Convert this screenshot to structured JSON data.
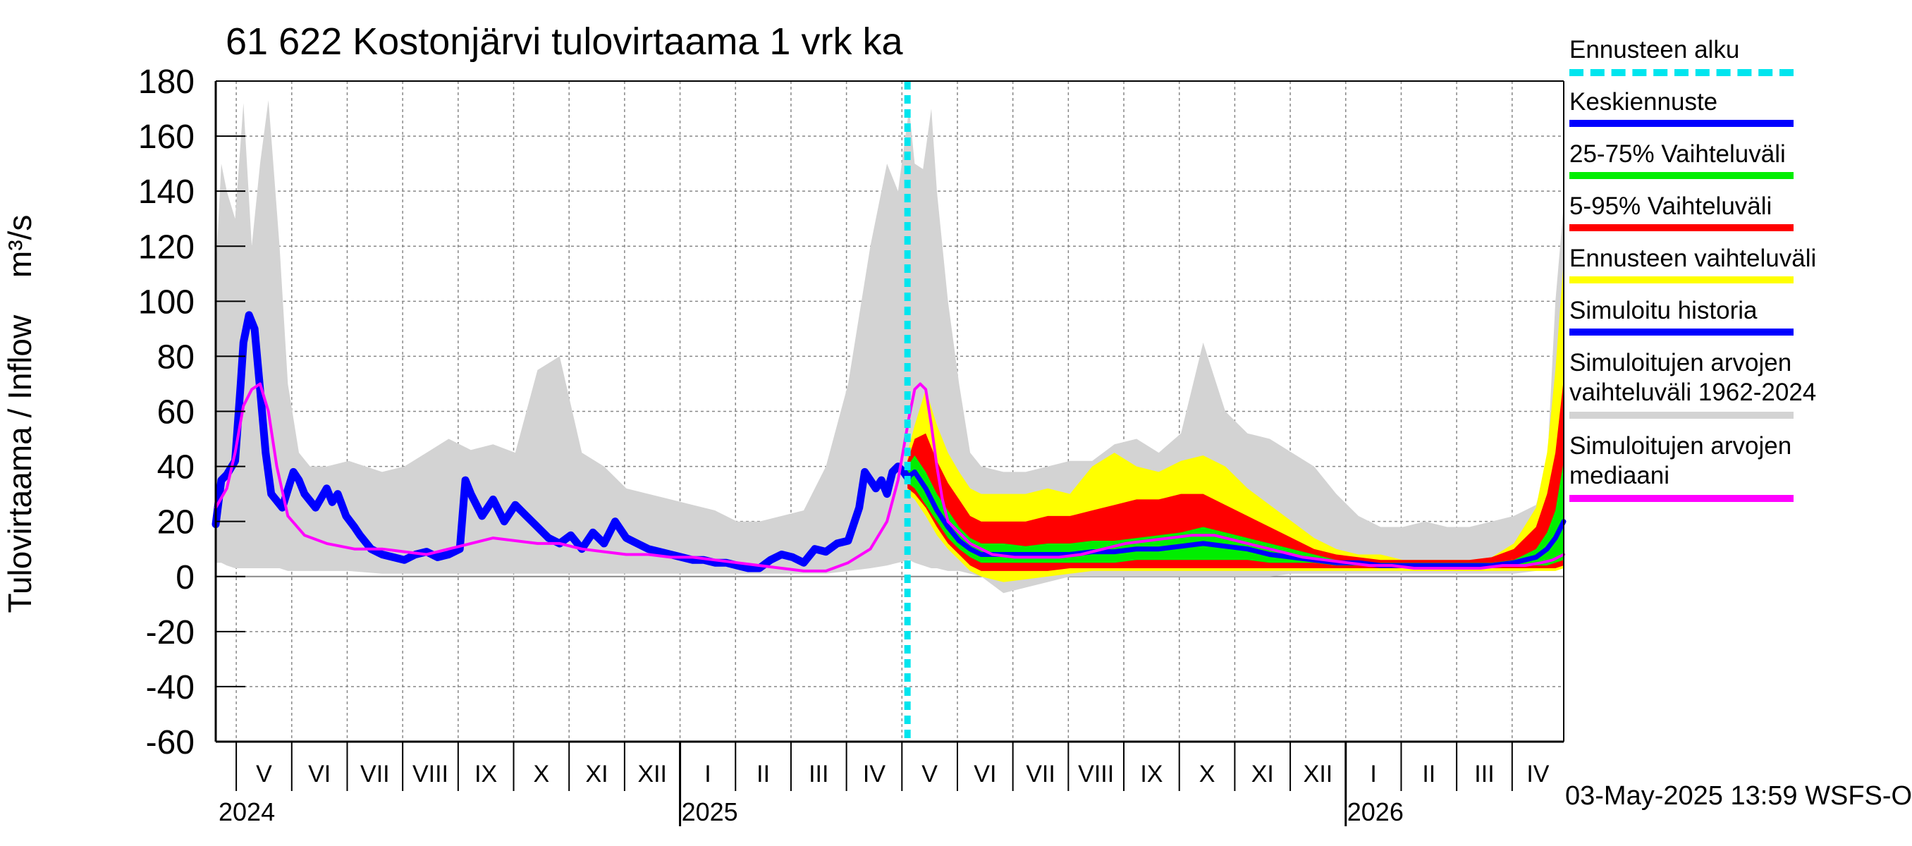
{
  "title": "61 622 Kostonjärvi tulovirtaama 1 vrk ka",
  "y_axis_label": "Tulovirtaama / Inflow",
  "y_axis_unit": "m³/s",
  "footer": "03-May-2025 13:59 WSFS-O",
  "legend": {
    "forecast_start": "Ennusteen alku",
    "mean_forecast": "Keskiennuste",
    "range_25_75": "25-75% Vaihteluväli",
    "range_5_95": "5-95% Vaihteluväli",
    "forecast_range": "Ennusteen vaihteluväli",
    "simulated_history": "Simuloitu historia",
    "sim_range_line1": "Simuloitujen arvojen",
    "sim_range_line2": "vaihteluväli 1962-2024",
    "sim_median_line1": "Simuloitujen arvojen",
    "sim_median_line2": "mediaani"
  },
  "colors": {
    "forecast_start": "#00e5ee",
    "mean_forecast": "#0000ff",
    "range_25_75": "#00ee00",
    "range_5_95": "#ff0000",
    "forecast_range": "#ffff00",
    "simulated_history": "#0000ff",
    "sim_range": "#d3d3d3",
    "sim_median": "#ff00ff"
  },
  "chart_data": {
    "type": "area",
    "title": "61 622 Kostonjärvi tulovirtaama 1 vrk ka",
    "ylabel": "Tulovirtaama / Inflow m³/s",
    "ylim": [
      -60,
      180
    ],
    "yticks": [
      180,
      160,
      140,
      120,
      100,
      80,
      60,
      40,
      20,
      0,
      -20,
      -40,
      -60
    ],
    "x_unit": "months since 2024-04-20",
    "xlim": [
      0,
      24.3
    ],
    "month_labels": [
      "V",
      "VI",
      "VII",
      "VIII",
      "IX",
      "X",
      "XI",
      "XII",
      "I",
      "II",
      "III",
      "IV",
      "V",
      "VI",
      "VII",
      "VIII",
      "IX",
      "X",
      "XI",
      "XII",
      "I",
      "II",
      "III",
      "IV"
    ],
    "month_starts": [
      0.37,
      1.37,
      2.37,
      3.37,
      4.37,
      5.37,
      6.37,
      7.37,
      8.37,
      9.37,
      10.37,
      11.37,
      12.37,
      13.37,
      14.37,
      15.37,
      16.37,
      17.37,
      18.37,
      19.37,
      20.37,
      21.37,
      22.37,
      23.37
    ],
    "year_labels": [
      "2024",
      "2025",
      "2026"
    ],
    "year_starts": [
      0.0,
      8.37,
      20.37
    ],
    "forecast_start_x": 12.47,
    "series": [
      {
        "name": "Simuloitujen arvojen vaihteluväli 1962-2024",
        "x": [
          0,
          0.1,
          0.2,
          0.35,
          0.5,
          0.65,
          0.8,
          0.95,
          1.0,
          1.15,
          1.3,
          1.5,
          1.7,
          2.0,
          2.4,
          3.0,
          3.4,
          3.8,
          4.2,
          4.6,
          5.0,
          5.4,
          5.8,
          6.2,
          6.6,
          7.0,
          7.4,
          7.8,
          8.2,
          8.6,
          9.0,
          9.4,
          9.8,
          10.2,
          10.6,
          11.0,
          11.4,
          11.8,
          12.1,
          12.3,
          12.5,
          12.6,
          12.75,
          12.9,
          13.0,
          13.2,
          13.4,
          13.6,
          13.8,
          14.2,
          14.6,
          15.0,
          15.4,
          15.8,
          16.2,
          16.6,
          17.0,
          17.4,
          17.8,
          18.2,
          18.6,
          19.0,
          19.4,
          19.8,
          20.2,
          20.6,
          21.0,
          21.4,
          21.8,
          22.2,
          22.6,
          23.0,
          23.4,
          23.8,
          24.0,
          24.15,
          24.3
        ],
        "upper": [
          110,
          150,
          140,
          130,
          172,
          120,
          150,
          173,
          160,
          120,
          70,
          45,
          40,
          40,
          42,
          38,
          40,
          45,
          50,
          46,
          48,
          45,
          75,
          80,
          45,
          40,
          32,
          30,
          28,
          26,
          24,
          20,
          20,
          22,
          24,
          40,
          70,
          120,
          150,
          140,
          170,
          150,
          148,
          170,
          140,
          100,
          70,
          45,
          40,
          38,
          38,
          40,
          42,
          42,
          48,
          50,
          45,
          52,
          85,
          60,
          52,
          50,
          45,
          40,
          30,
          22,
          18,
          18,
          20,
          18,
          18,
          20,
          22,
          26,
          40,
          100,
          135
        ],
        "lower": [
          5,
          5,
          4,
          3,
          3,
          3,
          3,
          3,
          3,
          3,
          2,
          2,
          2,
          2,
          2,
          1,
          1,
          1,
          1,
          1,
          1,
          1,
          1,
          1,
          1,
          1,
          1,
          1,
          1,
          1,
          1,
          1,
          1,
          1,
          1,
          1,
          2,
          3,
          4,
          5,
          6,
          5,
          4,
          3,
          3,
          2,
          2,
          1,
          0,
          -6,
          -4,
          -2,
          0,
          0,
          0,
          0,
          0,
          0,
          0,
          0,
          0,
          0,
          1,
          1,
          1,
          1,
          1,
          1,
          1,
          1,
          1,
          1,
          1,
          2,
          3,
          5,
          8
        ]
      },
      {
        "name": "Ennusteen vaihteluväli",
        "x": [
          12.47,
          12.6,
          12.8,
          13.0,
          13.2,
          13.4,
          13.6,
          13.8,
          14.2,
          14.6,
          15.0,
          15.4,
          15.8,
          16.2,
          16.6,
          17.0,
          17.4,
          17.8,
          18.2,
          18.6,
          19.0,
          19.4,
          19.8,
          20.2,
          20.6,
          21.0,
          21.4,
          21.8,
          22.2,
          22.6,
          23.0,
          23.4,
          23.8,
          24.0,
          24.15,
          24.3
        ],
        "upper": [
          45,
          55,
          68,
          55,
          45,
          38,
          32,
          30,
          30,
          30,
          32,
          30,
          40,
          45,
          40,
          38,
          42,
          44,
          40,
          32,
          26,
          20,
          14,
          10,
          8,
          8,
          6,
          6,
          6,
          6,
          7,
          12,
          25,
          45,
          75,
          115
        ],
        "lower": [
          30,
          28,
          22,
          15,
          10,
          6,
          2,
          0,
          -2,
          -1,
          0,
          1,
          2,
          2,
          2,
          2,
          2,
          2,
          2,
          2,
          2,
          2,
          2,
          2,
          2,
          2,
          2,
          2,
          2,
          2,
          2,
          2,
          2,
          2,
          2,
          3
        ]
      },
      {
        "name": "5-95% Vaihteluväli",
        "x": [
          12.47,
          12.6,
          12.8,
          13.0,
          13.2,
          13.4,
          13.6,
          13.8,
          14.2,
          14.6,
          15.0,
          15.4,
          15.8,
          16.2,
          16.6,
          17.0,
          17.4,
          17.8,
          18.2,
          18.6,
          19.0,
          19.4,
          19.8,
          20.2,
          20.6,
          21.0,
          21.4,
          21.8,
          22.2,
          22.6,
          23.0,
          23.4,
          23.8,
          24.0,
          24.15,
          24.3
        ],
        "upper": [
          42,
          50,
          52,
          42,
          34,
          28,
          22,
          20,
          20,
          20,
          22,
          22,
          24,
          26,
          28,
          28,
          30,
          30,
          26,
          22,
          18,
          14,
          10,
          8,
          7,
          6,
          6,
          6,
          6,
          6,
          7,
          10,
          18,
          30,
          45,
          72
        ],
        "lower": [
          32,
          30,
          25,
          18,
          12,
          8,
          4,
          2,
          2,
          2,
          2,
          3,
          3,
          3,
          3,
          3,
          3,
          3,
          3,
          3,
          3,
          3,
          3,
          3,
          3,
          3,
          3,
          3,
          3,
          3,
          3,
          3,
          3,
          3,
          3,
          4
        ]
      },
      {
        "name": "25-75% Vaihteluväli",
        "x": [
          12.47,
          12.6,
          12.8,
          13.0,
          13.2,
          13.4,
          13.6,
          13.8,
          14.2,
          14.6,
          15.0,
          15.4,
          15.8,
          16.2,
          16.6,
          17.0,
          17.4,
          17.8,
          18.2,
          18.6,
          19.0,
          19.4,
          19.8,
          20.2,
          20.6,
          21.0,
          21.4,
          21.8,
          22.2,
          22.6,
          23.0,
          23.4,
          23.8,
          24.0,
          24.15,
          24.3
        ],
        "upper": [
          40,
          44,
          38,
          30,
          24,
          18,
          14,
          12,
          12,
          11,
          12,
          12,
          13,
          13,
          14,
          15,
          16,
          18,
          16,
          14,
          12,
          10,
          8,
          6,
          5,
          5,
          5,
          5,
          5,
          5,
          5,
          6,
          10,
          16,
          24,
          42
        ],
        "lower": [
          34,
          32,
          26,
          20,
          14,
          10,
          7,
          5,
          5,
          5,
          5,
          5,
          5,
          5,
          6,
          6,
          6,
          6,
          6,
          6,
          5,
          5,
          5,
          4,
          4,
          4,
          4,
          4,
          4,
          4,
          4,
          4,
          4,
          4,
          5,
          6
        ]
      },
      {
        "name": "Keskiennuste",
        "x": [
          12.47,
          12.6,
          12.8,
          13.0,
          13.2,
          13.4,
          13.6,
          13.8,
          14.2,
          14.6,
          15.0,
          15.4,
          15.8,
          16.2,
          16.6,
          17.0,
          17.4,
          17.8,
          18.2,
          18.6,
          19.0,
          19.4,
          19.8,
          20.2,
          20.6,
          21.0,
          21.4,
          21.8,
          22.2,
          22.6,
          23.0,
          23.4,
          23.8,
          24.0,
          24.15,
          24.3
        ],
        "y": [
          36,
          38,
          32,
          24,
          18,
          13,
          10,
          8,
          8,
          8,
          8,
          8,
          9,
          9,
          10,
          10,
          11,
          12,
          11,
          10,
          8,
          7,
          6,
          5,
          5,
          4,
          4,
          4,
          4,
          4,
          4,
          5,
          7,
          10,
          14,
          20
        ]
      },
      {
        "name": "Simuloitu historia",
        "x": [
          0,
          0.1,
          0.2,
          0.35,
          0.45,
          0.5,
          0.6,
          0.7,
          0.8,
          0.9,
          1.0,
          1.2,
          1.4,
          1.5,
          1.6,
          1.8,
          2.0,
          2.1,
          2.2,
          2.35,
          2.5,
          2.6,
          2.8,
          3.0,
          3.2,
          3.4,
          3.6,
          3.8,
          4.0,
          4.2,
          4.4,
          4.5,
          4.6,
          4.8,
          5.0,
          5.2,
          5.4,
          5.6,
          5.8,
          6.0,
          6.2,
          6.4,
          6.6,
          6.8,
          7.0,
          7.2,
          7.4,
          7.6,
          7.8,
          8.0,
          8.2,
          8.4,
          8.6,
          8.8,
          9.0,
          9.2,
          9.4,
          9.6,
          9.8,
          10.0,
          10.2,
          10.4,
          10.6,
          10.8,
          11.0,
          11.2,
          11.4,
          11.6,
          11.7,
          11.8,
          11.9,
          12.0,
          12.1,
          12.2,
          12.3,
          12.4,
          12.47
        ],
        "y": [
          19,
          35,
          37,
          42,
          70,
          85,
          95,
          90,
          68,
          45,
          30,
          25,
          38,
          35,
          30,
          25,
          32,
          27,
          30,
          22,
          18,
          15,
          10,
          8,
          7,
          6,
          8,
          9,
          7,
          8,
          10,
          35,
          30,
          22,
          28,
          20,
          26,
          22,
          18,
          14,
          12,
          15,
          10,
          16,
          12,
          20,
          14,
          12,
          10,
          9,
          8,
          7,
          6,
          6,
          5,
          5,
          4,
          3,
          3,
          6,
          8,
          7,
          5,
          10,
          9,
          12,
          13,
          25,
          38,
          35,
          32,
          35,
          30,
          38,
          40,
          38,
          36
        ]
      },
      {
        "name": "Simuloitujen arvojen mediaani",
        "x": [
          0,
          0.2,
          0.35,
          0.5,
          0.65,
          0.8,
          0.95,
          1.1,
          1.3,
          1.6,
          2.0,
          2.5,
          3.0,
          3.4,
          3.8,
          4.2,
          4.6,
          5.0,
          5.4,
          5.8,
          6.2,
          6.6,
          7.0,
          7.4,
          7.8,
          8.2,
          8.6,
          9.0,
          9.4,
          9.8,
          10.2,
          10.6,
          11.0,
          11.4,
          11.8,
          12.1,
          12.3,
          12.5,
          12.6,
          12.7,
          12.8,
          12.9,
          13.0,
          13.1,
          13.2,
          13.4,
          13.6,
          13.8,
          14.0,
          14.4,
          14.8,
          15.2,
          15.6,
          16.0,
          16.4,
          16.8,
          17.2,
          17.6,
          18.0,
          18.4,
          18.8,
          19.2,
          19.6,
          20.0,
          20.4,
          20.8,
          21.2,
          21.6,
          22.0,
          22.4,
          22.8,
          23.2,
          23.6,
          23.9,
          24.1,
          24.3
        ],
        "y": [
          25,
          32,
          45,
          62,
          68,
          70,
          60,
          40,
          22,
          15,
          12,
          10,
          10,
          9,
          8,
          10,
          12,
          14,
          13,
          12,
          12,
          10,
          9,
          8,
          8,
          7,
          7,
          6,
          5,
          4,
          3,
          2,
          2,
          5,
          10,
          20,
          35,
          58,
          68,
          70,
          68,
          55,
          40,
          28,
          20,
          16,
          12,
          10,
          8,
          7,
          7,
          7,
          8,
          10,
          12,
          13,
          14,
          15,
          15,
          13,
          11,
          9,
          7,
          6,
          5,
          4,
          4,
          3,
          3,
          3,
          3,
          4,
          4,
          5,
          6,
          8
        ]
      }
    ]
  }
}
